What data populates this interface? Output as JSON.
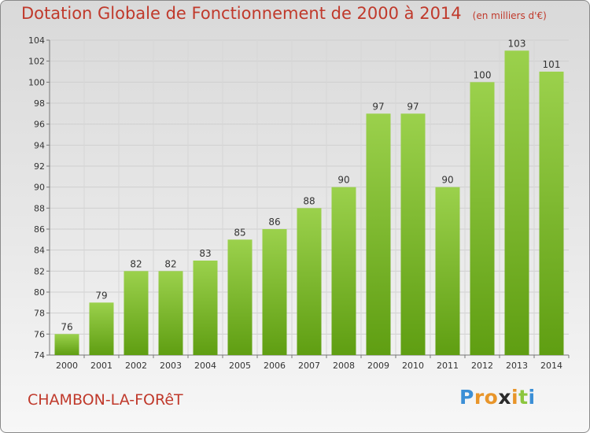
{
  "title": "Dotation Globale de Fonctionnement de 2000 à 2014",
  "unit_note": "(en milliers d'€)",
  "city": "CHAMBON-LA-FORêT",
  "logo": {
    "text": "Proxiti",
    "letters": [
      {
        "ch": "P",
        "color": "#3b8fd6"
      },
      {
        "ch": "r",
        "color": "#e8952a"
      },
      {
        "ch": "o",
        "color": "#e8952a"
      },
      {
        "ch": "x",
        "color": "#2b2b2b"
      },
      {
        "ch": "i",
        "color": "#e8952a"
      },
      {
        "ch": "t",
        "color": "#8cc63f"
      },
      {
        "ch": "i",
        "color": "#3b8fd6"
      }
    ]
  },
  "chart_data": {
    "type": "bar",
    "title": "Dotation Globale de Fonctionnement de 2000 à 2014",
    "subtitle": "(en milliers d'€)",
    "categories": [
      "2000",
      "2001",
      "2002",
      "2003",
      "2004",
      "2005",
      "2006",
      "2007",
      "2008",
      "2009",
      "2010",
      "2011",
      "2012",
      "2013",
      "2014"
    ],
    "values": [
      76,
      79,
      82,
      82,
      83,
      85,
      86,
      88,
      90,
      97,
      97,
      90,
      100,
      103,
      101
    ],
    "ylim": [
      74,
      104
    ],
    "yticks": [
      74,
      76,
      78,
      80,
      82,
      84,
      86,
      88,
      90,
      92,
      94,
      96,
      98,
      100,
      102,
      104
    ],
    "grid": true,
    "bar_color_top": "#9bd14c",
    "bar_color_bottom": "#5f9e12"
  }
}
